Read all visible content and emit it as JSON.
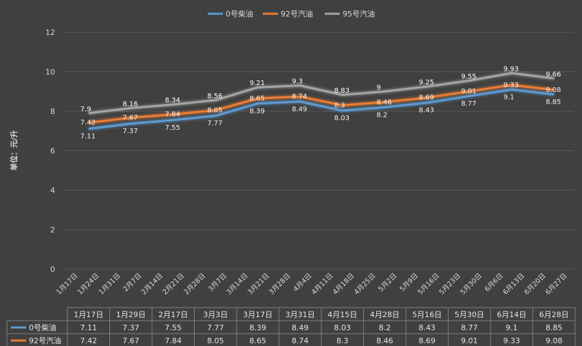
{
  "chart_data": {
    "type": "line",
    "ylabel": "单位：元/升",
    "ylim": [
      0,
      12
    ],
    "yticks": [
      0,
      2,
      4,
      6,
      8,
      10,
      12
    ],
    "grid": true,
    "legend_position": "top",
    "x_axis_labels": [
      "1月17日",
      "1月24日",
      "1月31日",
      "2月7日",
      "2月14日",
      "2月21日",
      "2月28日",
      "3月7日",
      "3月14日",
      "3月21日",
      "3月28日",
      "4月4日",
      "4月11日",
      "4月18日",
      "4月25日",
      "5月2日",
      "5月9日",
      "5月16日",
      "5月23日",
      "5月30日",
      "6月6日",
      "6月13日",
      "6月20日",
      "6月27日"
    ],
    "table_columns": [
      "1月17日",
      "1月29日",
      "2月17日",
      "3月3日",
      "3月17日",
      "3月31日",
      "4月15日",
      "4月28日",
      "5月16日",
      "5月30日",
      "6月14日",
      "6月28日"
    ],
    "series": [
      {
        "name": "0号柴油",
        "color": "#5b9bd5",
        "values": [
          7.11,
          7.37,
          7.55,
          7.77,
          8.39,
          8.49,
          8.03,
          8.2,
          8.43,
          8.77,
          9.1,
          8.85
        ],
        "labels": [
          "7.11",
          "7.37",
          "7.55",
          "7.77",
          "8.39",
          "8.49",
          "8.03",
          "8.2",
          "8.43",
          "8.77",
          "9.1",
          "8.85"
        ]
      },
      {
        "name": "92号汽油",
        "color": "#ed7d31",
        "values": [
          7.42,
          7.67,
          7.84,
          8.05,
          8.65,
          8.74,
          8.3,
          8.46,
          8.69,
          9.01,
          9.33,
          9.08
        ],
        "labels": [
          "7.42",
          "7.67",
          "7.84",
          "8.05",
          "8.65",
          "8.74",
          "8.3",
          "8.46",
          "8.69",
          "9.01",
          "9.33",
          "9.08"
        ]
      },
      {
        "name": "95号汽油",
        "color": "#a5a5a5",
        "values": [
          7.9,
          8.16,
          8.34,
          8.56,
          9.21,
          9.3,
          8.83,
          9.0,
          9.25,
          9.55,
          9.93,
          9.66
        ],
        "labels": [
          "7.9",
          "8.16",
          "8.34",
          "8.56",
          "9.21",
          "9.3",
          "8.83",
          "9",
          "9.25",
          "9.55",
          "9.93",
          "9.66"
        ]
      }
    ]
  }
}
